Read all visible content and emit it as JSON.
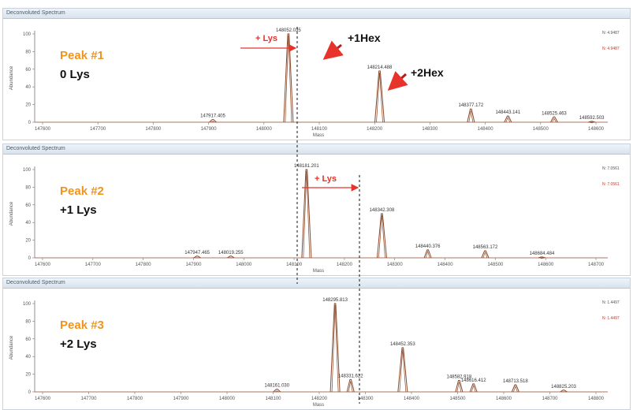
{
  "chart_data": [
    {
      "type": "line",
      "panel_title": "Deconvoluted Spectrum",
      "peak_label": "Peak #1",
      "peak_sub": "0 Lys",
      "ylabel": "Abundance",
      "xlabel": "Mass",
      "xlim": [
        147600,
        148600
      ],
      "ylim": [
        0,
        100
      ],
      "yticks": [
        0,
        20,
        40,
        60,
        80,
        100
      ],
      "xticks": [
        "147600",
        "147700",
        "147800",
        "147900",
        "148000",
        "148100",
        "148200",
        "148300",
        "148400",
        "148500",
        "148600"
      ],
      "legend": [
        {
          "label": "N: 4.9487",
          "color": "#555555"
        },
        {
          "label": "N: 4.9487",
          "color": "#c0392b"
        }
      ],
      "peaks": [
        {
          "mass": 147917.405,
          "abundance": 3,
          "label": "147917.405"
        },
        {
          "mass": 148052.035,
          "abundance": 100,
          "label": "148052.035"
        },
        {
          "mass": 148214.488,
          "abundance": 58,
          "label": "148214.488"
        },
        {
          "mass": 148377.172,
          "abundance": 15,
          "label": "148377.172"
        },
        {
          "mass": 148443.141,
          "abundance": 7,
          "label": "148443.141"
        },
        {
          "mass": 148525.463,
          "abundance": 6,
          "label": "148525.463"
        },
        {
          "mass": 148592.503,
          "abundance": 1,
          "label": "148592.503"
        }
      ]
    },
    {
      "type": "line",
      "panel_title": "Deconvoluted Spectrum",
      "peak_label": "Peak #2",
      "peak_sub": "+1 Lys",
      "ylabel": "Abundance",
      "xlabel": "Mass",
      "xlim": [
        147600,
        148800
      ],
      "ylim": [
        0,
        100
      ],
      "yticks": [
        0,
        20,
        40,
        60,
        80,
        100
      ],
      "xticks": [
        "147600",
        "147700",
        "147800",
        "147900",
        "148000",
        "148100",
        "148200",
        "148300",
        "148400",
        "148500",
        "148600",
        "148700"
      ],
      "legend": [
        {
          "label": "N: 7.0561",
          "color": "#555555"
        },
        {
          "label": "N: 7.0561",
          "color": "#c0392b"
        }
      ],
      "peaks": [
        {
          "mass": 147947.465,
          "abundance": 2,
          "label": "147947.465"
        },
        {
          "mass": 148019.255,
          "abundance": 2,
          "label": "148019.255"
        },
        {
          "mass": 148181.201,
          "abundance": 100,
          "label": "148181.201"
        },
        {
          "mass": 148342.308,
          "abundance": 50,
          "label": "148342.308"
        },
        {
          "mass": 148440.376,
          "abundance": 9,
          "label": "148440.376"
        },
        {
          "mass": 148563.172,
          "abundance": 8,
          "label": "148563.172"
        },
        {
          "mass": 148684.484,
          "abundance": 1,
          "label": "148684.484"
        }
      ]
    },
    {
      "type": "line",
      "panel_title": "Deconvoluted Spectrum",
      "peak_label": "Peak #3",
      "peak_sub": "+2 Lys",
      "ylabel": "Abundance",
      "xlabel": "Mass",
      "xlim": [
        147600,
        148900
      ],
      "ylim": [
        0,
        100
      ],
      "yticks": [
        0,
        20,
        40,
        60,
        80,
        100
      ],
      "xticks": [
        "147600",
        "147700",
        "147800",
        "147900",
        "148000",
        "148100",
        "148200",
        "148300",
        "148400",
        "148500",
        "148600",
        "148700",
        "148800"
      ],
      "legend": [
        {
          "label": "N: 1.4497",
          "color": "#555555"
        },
        {
          "label": "N: 1.4497",
          "color": "#c0392b"
        }
      ],
      "peaks": [
        {
          "mass": 148161.03,
          "abundance": 3,
          "label": "148161.030"
        },
        {
          "mass": 148295.813,
          "abundance": 100,
          "label": "148295.813"
        },
        {
          "mass": 148331.622,
          "abundance": 14,
          "label": "148331.622"
        },
        {
          "mass": 148452.353,
          "abundance": 50,
          "label": "148452.353"
        },
        {
          "mass": 148582.918,
          "abundance": 13,
          "label": "148582.918"
        },
        {
          "mass": 148616.412,
          "abundance": 9,
          "label": "148616.412"
        },
        {
          "mass": 148713.518,
          "abundance": 8,
          "label": "148713.518"
        },
        {
          "mass": 148825.203,
          "abundance": 2,
          "label": "148825.203"
        }
      ]
    }
  ],
  "annotations": {
    "lys_label": "+ Lys",
    "hex1_label": "+1Hex",
    "hex2_label": "+2Hex",
    "arrow_red": "#e8322c",
    "accent_orange": "#f0941e",
    "trace_color": "#8b4a2b"
  }
}
